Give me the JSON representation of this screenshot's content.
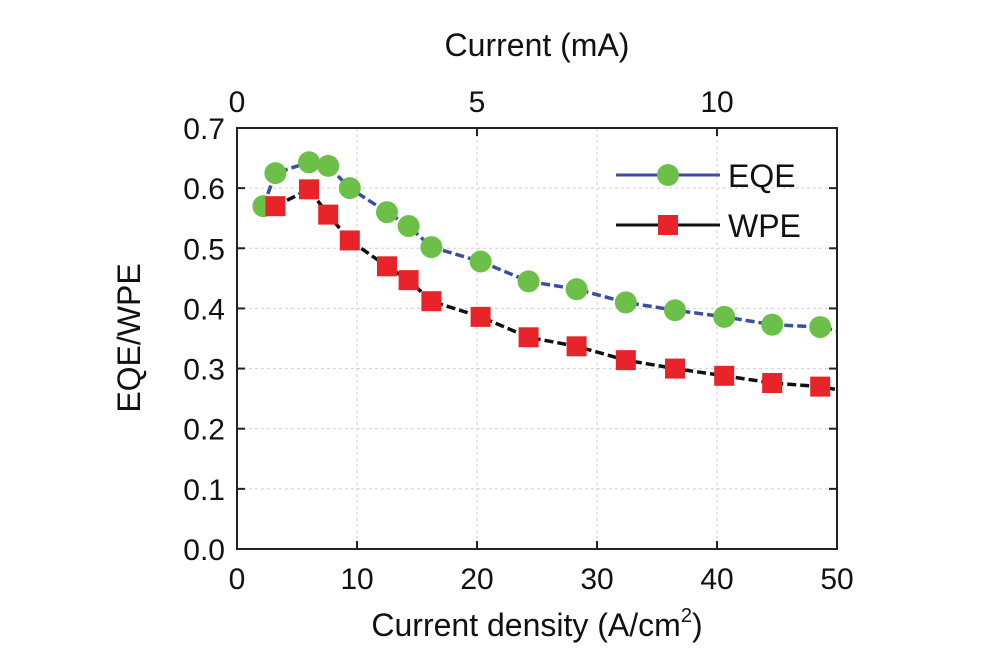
{
  "chart_data": {
    "type": "line",
    "xlabel": "Current density (A/cm",
    "xlabel_sup": "2",
    "xlabel_close": ")",
    "top_xlabel": "Current (mA)",
    "ylabel": "EQE/WPE",
    "xlim": [
      0,
      50
    ],
    "ylim": [
      0.0,
      0.7
    ],
    "top_xlim": [
      0,
      12.5
    ],
    "x_ticks": [
      "0",
      "10",
      "20",
      "30",
      "40",
      "50"
    ],
    "x_tick_values": [
      0,
      10,
      20,
      30,
      40,
      50
    ],
    "top_x_ticks": [
      "0",
      "5",
      "10"
    ],
    "top_x_tick_values": [
      0,
      5,
      10
    ],
    "y_ticks": [
      "0.0",
      "0.1",
      "0.2",
      "0.3",
      "0.4",
      "0.5",
      "0.6",
      "0.7"
    ],
    "y_tick_values": [
      0.0,
      0.1,
      0.2,
      0.3,
      0.4,
      0.5,
      0.6,
      0.7
    ],
    "grid": true,
    "legend_position": "top-right",
    "series": [
      {
        "name": "EQE",
        "line_color": "#3b4fa0",
        "marker_color": "#6cc04a",
        "marker": "circle",
        "x": [
          2.2,
          3.2,
          6.0,
          7.6,
          9.4,
          12.5,
          14.3,
          16.2,
          20.3,
          24.3,
          28.3,
          32.4,
          36.5,
          40.6,
          44.6,
          48.6,
          50
        ],
        "y": [
          0.57,
          0.625,
          0.643,
          0.637,
          0.6,
          0.56,
          0.537,
          0.502,
          0.478,
          0.445,
          0.432,
          0.41,
          0.397,
          0.386,
          0.373,
          0.369,
          0.363
        ]
      },
      {
        "name": "WPE",
        "line_color": "#111111",
        "marker_color": "#e8232a",
        "marker": "square",
        "x": [
          3.2,
          6.0,
          7.6,
          9.4,
          12.5,
          14.3,
          16.2,
          20.3,
          24.3,
          28.3,
          32.4,
          36.5,
          40.6,
          44.6,
          48.6,
          50
        ],
        "y": [
          0.57,
          0.598,
          0.556,
          0.513,
          0.47,
          0.447,
          0.412,
          0.386,
          0.352,
          0.337,
          0.314,
          0.3,
          0.288,
          0.276,
          0.27,
          0.265
        ]
      }
    ]
  }
}
